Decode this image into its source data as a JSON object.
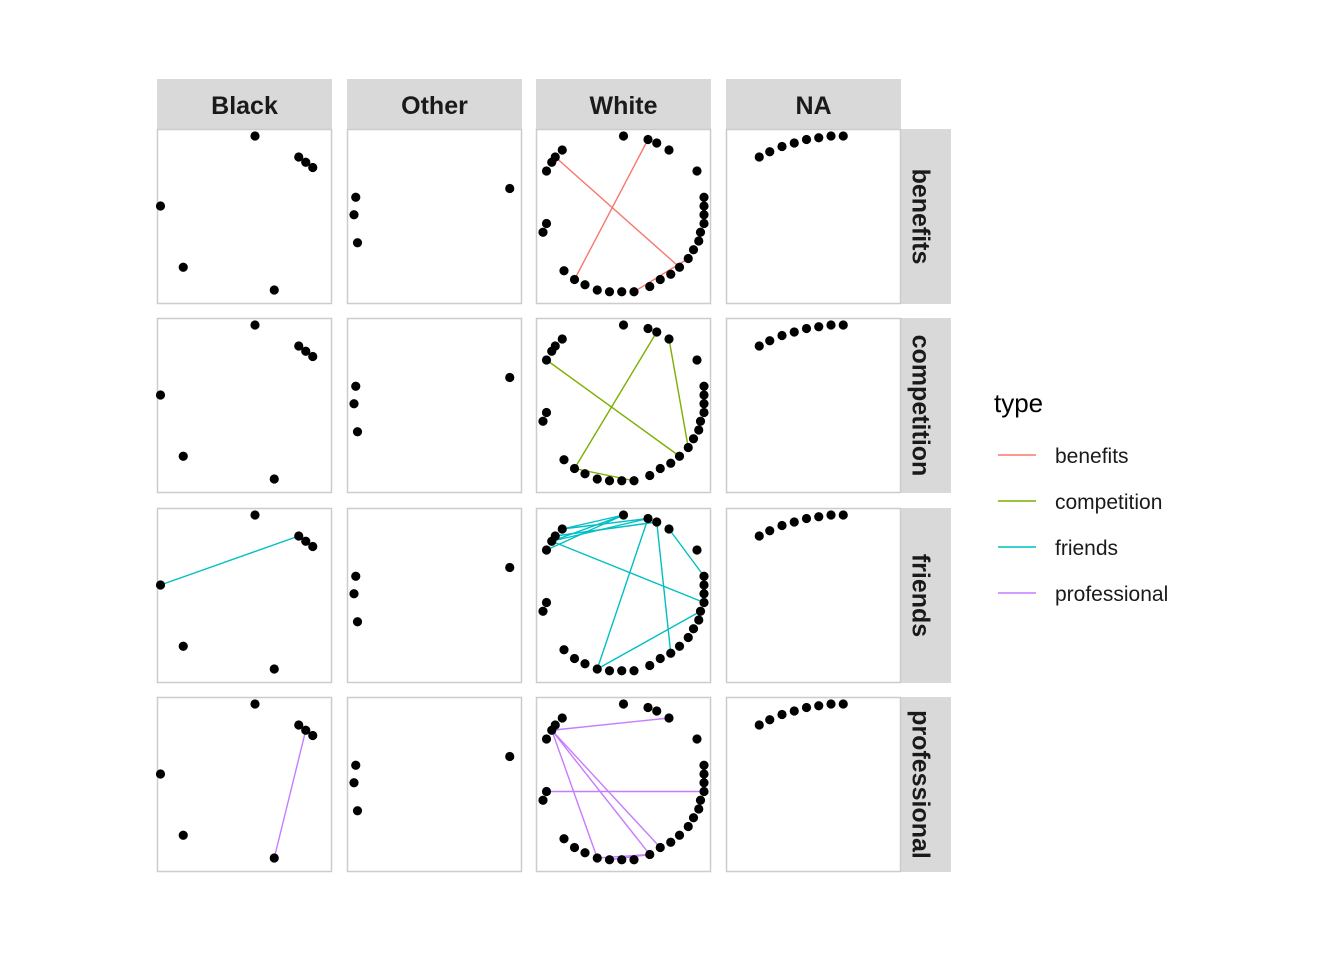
{
  "chart_data": {
    "type": "scatter",
    "subtype": "faceted network graph (nodes + edges)",
    "facets": {
      "columns": [
        "Black",
        "Other",
        "White",
        "NA"
      ],
      "rows": [
        "benefits",
        "competition",
        "friends",
        "professional"
      ]
    },
    "legend": {
      "title": "type",
      "placement": "right",
      "items": [
        {
          "label": "benefits",
          "color": "#F8766D"
        },
        {
          "label": "competition",
          "color": "#7CAE00"
        },
        {
          "label": "friends",
          "color": "#00BFC4"
        },
        {
          "label": "professional",
          "color": "#C77CFF"
        }
      ]
    },
    "colors": {
      "node": "#000000",
      "strip_background": "#D9D9D9",
      "panel_border": "#CCCCCC"
    },
    "nodes": {
      "Black": [
        [
          0.56,
          0.04
        ],
        [
          0.81,
          0.16
        ],
        [
          0.85,
          0.19
        ],
        [
          0.89,
          0.22
        ],
        [
          0.02,
          0.44
        ],
        [
          0.15,
          0.79
        ],
        [
          0.67,
          0.92
        ]
      ],
      "Other": [
        [
          0.93,
          0.34
        ],
        [
          0.05,
          0.39
        ],
        [
          0.04,
          0.49
        ],
        [
          0.06,
          0.65
        ]
      ],
      "White": [
        [
          0.5,
          0.04
        ],
        [
          0.64,
          0.06
        ],
        [
          0.69,
          0.08
        ],
        [
          0.76,
          0.12
        ],
        [
          0.92,
          0.24
        ],
        [
          0.96,
          0.39
        ],
        [
          0.96,
          0.44
        ],
        [
          0.96,
          0.49
        ],
        [
          0.96,
          0.54
        ],
        [
          0.94,
          0.59
        ],
        [
          0.93,
          0.64
        ],
        [
          0.9,
          0.69
        ],
        [
          0.87,
          0.74
        ],
        [
          0.82,
          0.79
        ],
        [
          0.77,
          0.83
        ],
        [
          0.71,
          0.86
        ],
        [
          0.65,
          0.9
        ],
        [
          0.56,
          0.93
        ],
        [
          0.49,
          0.93
        ],
        [
          0.42,
          0.93
        ],
        [
          0.35,
          0.92
        ],
        [
          0.28,
          0.89
        ],
        [
          0.22,
          0.86
        ],
        [
          0.16,
          0.81
        ],
        [
          0.06,
          0.54
        ],
        [
          0.04,
          0.59
        ],
        [
          0.09,
          0.19
        ],
        [
          0.06,
          0.24
        ],
        [
          0.11,
          0.16
        ],
        [
          0.15,
          0.12
        ]
      ],
      "NA": [
        [
          0.19,
          0.16
        ],
        [
          0.25,
          0.13
        ],
        [
          0.32,
          0.1
        ],
        [
          0.39,
          0.08
        ],
        [
          0.46,
          0.06
        ],
        [
          0.53,
          0.05
        ],
        [
          0.6,
          0.04
        ],
        [
          0.67,
          0.04
        ]
      ]
    },
    "edges": {
      "benefits": {
        "Black": [],
        "Other": [],
        "NA": [],
        "White": [
          [
            1,
            22
          ],
          [
            28,
            13
          ],
          [
            12,
            17
          ]
        ]
      },
      "competition": {
        "Black": [],
        "Other": [],
        "NA": [],
        "White": [
          [
            2,
            22
          ],
          [
            27,
            13
          ],
          [
            3,
            12
          ],
          [
            22,
            17
          ]
        ]
      },
      "friends": {
        "Black": [
          [
            4,
            1
          ]
        ],
        "Other": [],
        "NA": [],
        "White": [
          [
            0,
            29
          ],
          [
            1,
            29
          ],
          [
            2,
            28
          ],
          [
            0,
            27
          ],
          [
            0,
            26
          ],
          [
            1,
            26
          ],
          [
            3,
            5
          ],
          [
            2,
            14
          ],
          [
            1,
            20
          ],
          [
            20,
            9
          ],
          [
            26,
            8
          ]
        ]
      },
      "professional": {
        "Black": [
          [
            2,
            6
          ]
        ],
        "Other": [],
        "NA": [],
        "White": [
          [
            3,
            26
          ],
          [
            24,
            8
          ],
          [
            26,
            15
          ],
          [
            26,
            16
          ],
          [
            26,
            20
          ],
          [
            20,
            16
          ],
          [
            19,
            16
          ]
        ]
      }
    }
  }
}
